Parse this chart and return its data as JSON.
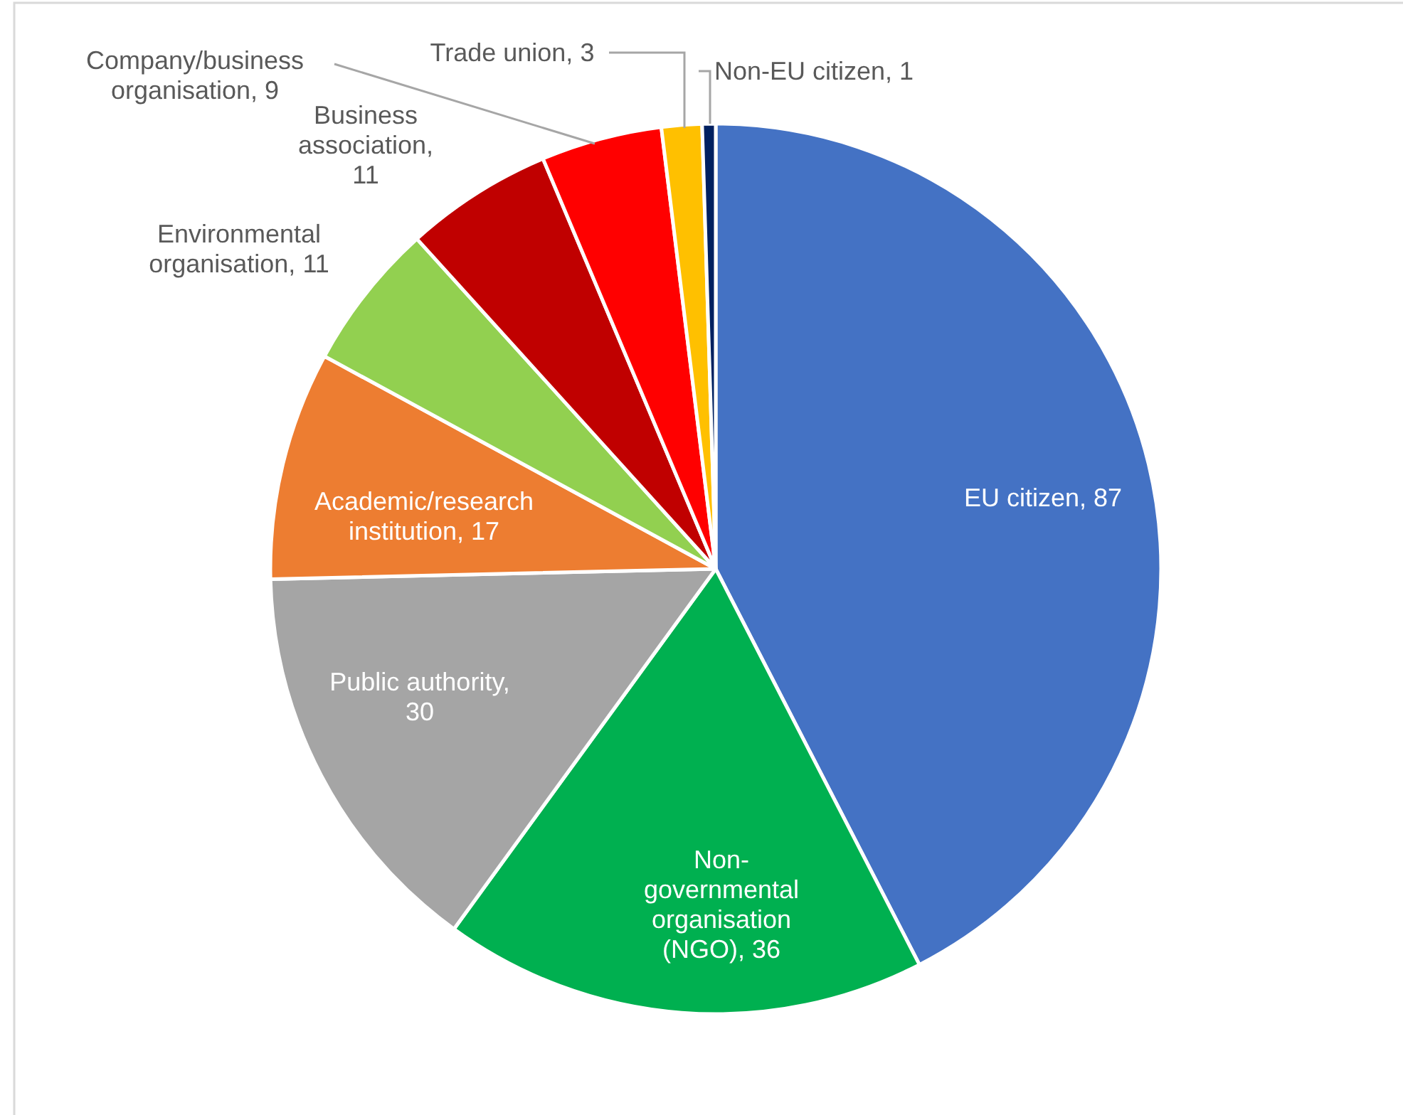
{
  "chart_data": {
    "type": "pie",
    "categories": [
      "EU citizen",
      "Non-governmental organisation (NGO)",
      "Public authority",
      "Academic/research institution",
      "Environmental organisation",
      "Business association",
      "Company/business organisation",
      "Trade union",
      "Non-EU citizen"
    ],
    "values": [
      87,
      36,
      30,
      17,
      11,
      11,
      9,
      3,
      1
    ],
    "colors": [
      "#4472c4",
      "#00b050",
      "#a5a5a5",
      "#ed7d31",
      "#92d050",
      "#c00000",
      "#ff0000",
      "#ffc000",
      "#002060"
    ],
    "value_labels": [
      ", 87",
      ", 36",
      ", 30",
      ", 17",
      ", 11",
      ", 11",
      ", 9",
      ", 3",
      ", 1"
    ]
  }
}
